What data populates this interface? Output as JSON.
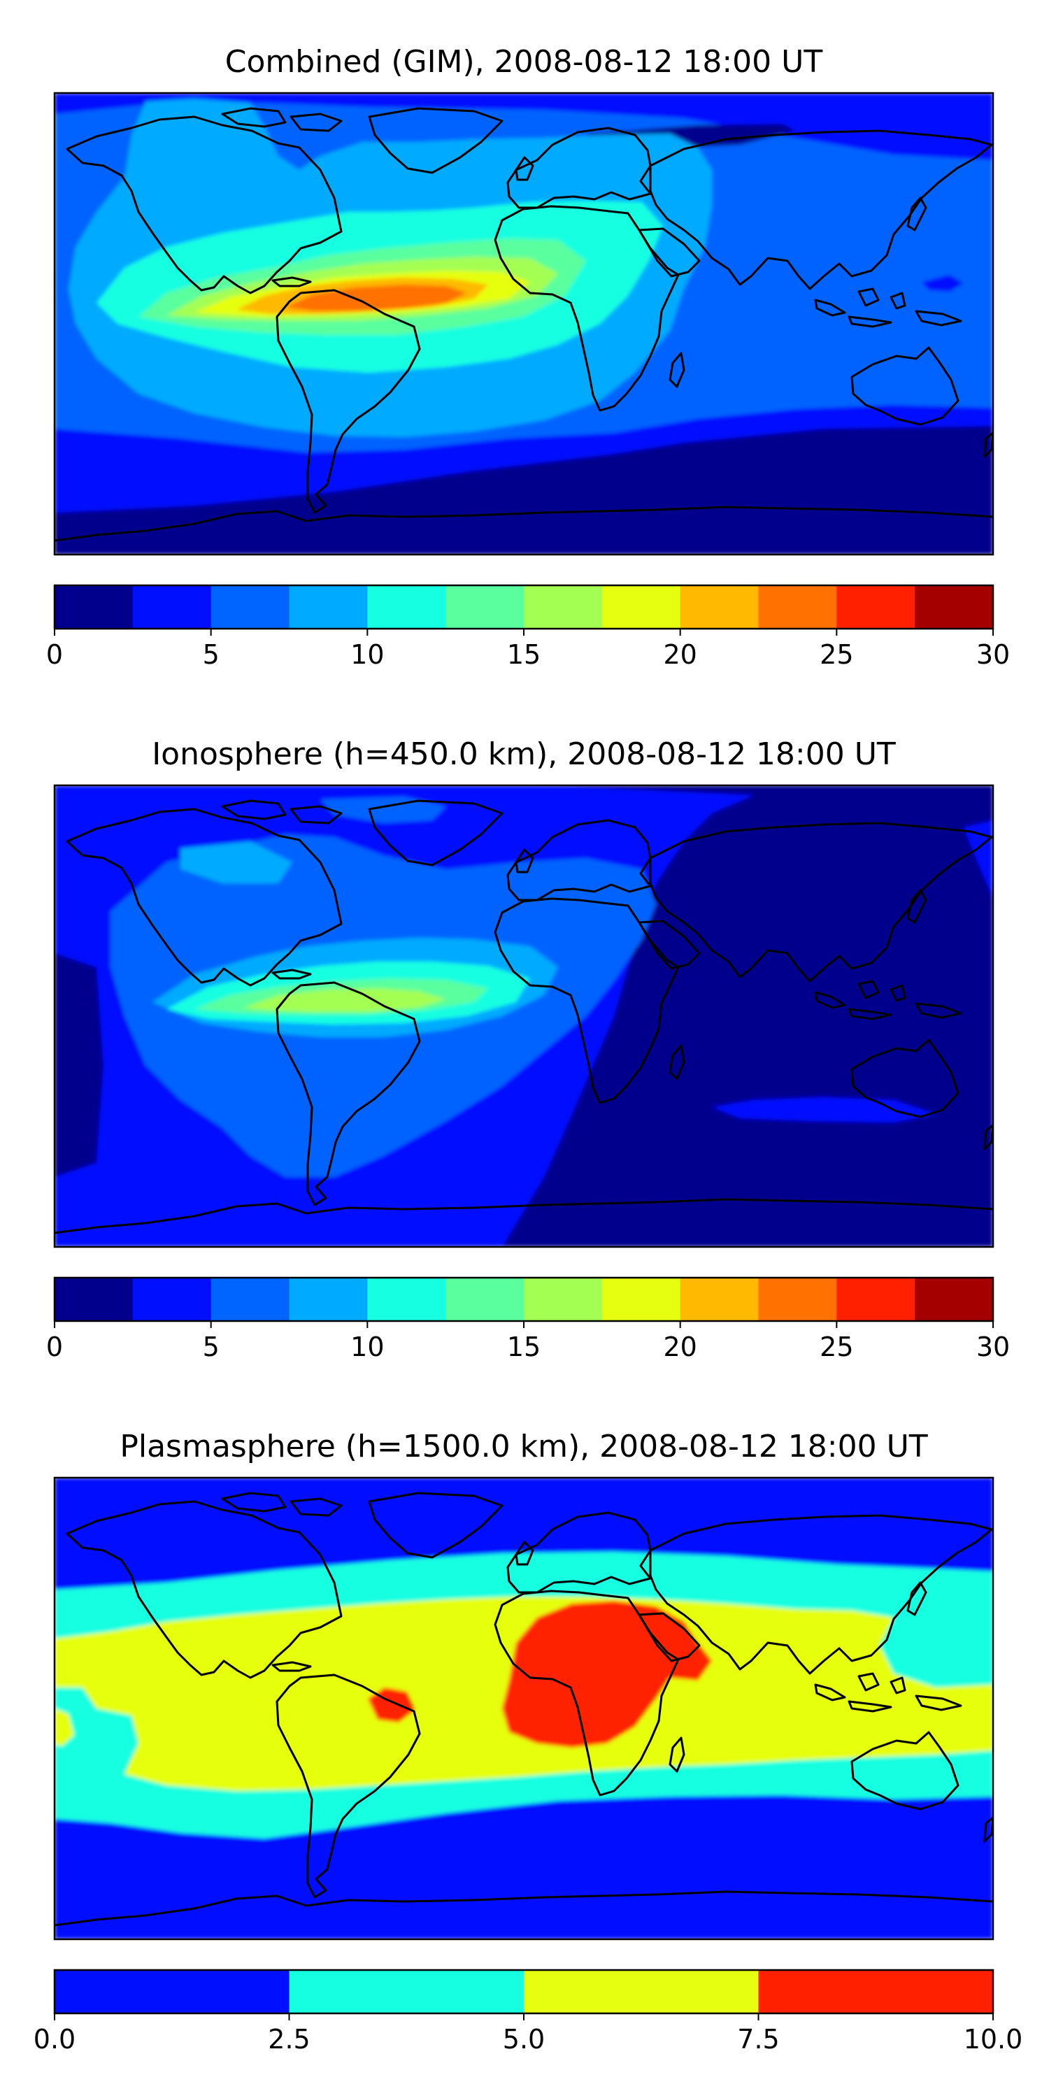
{
  "figure": {
    "panels": [
      {
        "title": "Combined (GIM), 2008-08-12 18:00 UT",
        "colorbar": {
          "ticks": [
            "0",
            "5",
            "10",
            "15",
            "20",
            "25",
            "30"
          ],
          "tick_values": [
            0,
            5,
            10,
            15,
            20,
            25,
            30
          ],
          "range": [
            0,
            30
          ],
          "bins": [
            {
              "from": 0,
              "to": 2.5,
              "color": "#00008d"
            },
            {
              "from": 2.5,
              "to": 5,
              "color": "#0010ff"
            },
            {
              "from": 5,
              "to": 7.5,
              "color": "#0064ff"
            },
            {
              "from": 7.5,
              "to": 10,
              "color": "#00aaff"
            },
            {
              "from": 10,
              "to": 12.5,
              "color": "#16ffe1"
            },
            {
              "from": 12.5,
              "to": 15,
              "color": "#5aff9e"
            },
            {
              "from": 15,
              "to": 17.5,
              "color": "#a4ff53"
            },
            {
              "from": 17.5,
              "to": 20,
              "color": "#e6ff11"
            },
            {
              "from": 20,
              "to": 22.5,
              "color": "#ffb900"
            },
            {
              "from": 22.5,
              "to": 25,
              "color": "#ff7100"
            },
            {
              "from": 25,
              "to": 27.5,
              "color": "#ff2000"
            },
            {
              "from": 27.5,
              "to": 30,
              "color": "#a40000"
            }
          ]
        }
      },
      {
        "title": "Ionosphere  (h=450.0 km), 2008-08-12 18:00 UT",
        "colorbar": {
          "ticks": [
            "0",
            "5",
            "10",
            "15",
            "20",
            "25",
            "30"
          ],
          "tick_values": [
            0,
            5,
            10,
            15,
            20,
            25,
            30
          ],
          "range": [
            0,
            30
          ],
          "bins": [
            {
              "from": 0,
              "to": 2.5,
              "color": "#00008d"
            },
            {
              "from": 2.5,
              "to": 5,
              "color": "#0010ff"
            },
            {
              "from": 5,
              "to": 7.5,
              "color": "#0064ff"
            },
            {
              "from": 7.5,
              "to": 10,
              "color": "#00aaff"
            },
            {
              "from": 10,
              "to": 12.5,
              "color": "#16ffe1"
            },
            {
              "from": 12.5,
              "to": 15,
              "color": "#5aff9e"
            },
            {
              "from": 15,
              "to": 17.5,
              "color": "#a4ff53"
            },
            {
              "from": 17.5,
              "to": 20,
              "color": "#e6ff11"
            },
            {
              "from": 20,
              "to": 22.5,
              "color": "#ffb900"
            },
            {
              "from": 22.5,
              "to": 25,
              "color": "#ff7100"
            },
            {
              "from": 25,
              "to": 27.5,
              "color": "#ff2000"
            },
            {
              "from": 27.5,
              "to": 30,
              "color": "#a40000"
            }
          ]
        }
      },
      {
        "title": "Plasmasphere (h=1500.0 km), 2008-08-12 18:00 UT",
        "colorbar": {
          "ticks": [
            "0.0",
            "2.5",
            "5.0",
            "7.5",
            "10.0"
          ],
          "tick_values": [
            0,
            2.5,
            5,
            7.5,
            10
          ],
          "range": [
            0,
            10
          ],
          "bins": [
            {
              "from": 0,
              "to": 2.5,
              "color": "#0010ff"
            },
            {
              "from": 2.5,
              "to": 5,
              "color": "#16ffe1"
            },
            {
              "from": 5,
              "to": 7.5,
              "color": "#e6ff11"
            },
            {
              "from": 7.5,
              "to": 10,
              "color": "#ff2000"
            }
          ]
        }
      }
    ]
  }
}
